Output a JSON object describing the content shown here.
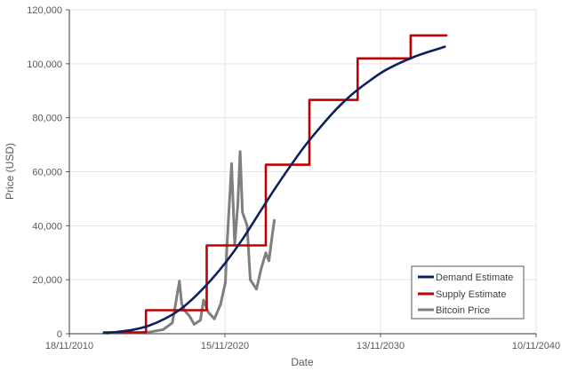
{
  "chart_data": {
    "type": "line",
    "title": "",
    "xlabel": "Date",
    "ylabel": "Price (USD)",
    "x_tick_labels": [
      "18/11/2010",
      "15/11/2020",
      "13/11/2030",
      "10/11/2040"
    ],
    "y_tick_labels": [
      "0",
      "20,000",
      "40,000",
      "60,000",
      "80,000",
      "100,000",
      "120,000"
    ],
    "xlim": [
      "18/11/2010",
      "10/11/2040"
    ],
    "ylim": [
      0,
      120000
    ],
    "grid": true,
    "legend_position": "lower-right-inside",
    "series": [
      {
        "name": "Demand Estimate",
        "color": "#0d1f5c",
        "style": "smooth",
        "points": [
          {
            "year": 2013.1,
            "value": 300
          },
          {
            "year": 2014.0,
            "value": 700
          },
          {
            "year": 2015.0,
            "value": 1500
          },
          {
            "year": 2016.0,
            "value": 3000
          },
          {
            "year": 2017.0,
            "value": 5500
          },
          {
            "year": 2018.0,
            "value": 9000
          },
          {
            "year": 2019.0,
            "value": 14000
          },
          {
            "year": 2020.0,
            "value": 20000
          },
          {
            "year": 2021.0,
            "value": 27000
          },
          {
            "year": 2022.0,
            "value": 35000
          },
          {
            "year": 2023.0,
            "value": 44000
          },
          {
            "year": 2024.0,
            "value": 53000
          },
          {
            "year": 2025.0,
            "value": 61500
          },
          {
            "year": 2026.0,
            "value": 69500
          },
          {
            "year": 2027.0,
            "value": 76500
          },
          {
            "year": 2028.0,
            "value": 83000
          },
          {
            "year": 2029.0,
            "value": 88500
          },
          {
            "year": 2030.0,
            "value": 93000
          },
          {
            "year": 2031.0,
            "value": 97000
          },
          {
            "year": 2032.0,
            "value": 100000
          },
          {
            "year": 2033.0,
            "value": 102500
          },
          {
            "year": 2034.0,
            "value": 104500
          },
          {
            "year": 2035.0,
            "value": 106300
          }
        ]
      },
      {
        "name": "Supply Estimate",
        "color": "#c00000",
        "style": "step",
        "points": [
          {
            "year": 2013.1,
            "value": 500
          },
          {
            "year": 2015.8,
            "value": 500
          },
          {
            "year": 2015.8,
            "value": 8700
          },
          {
            "year": 2019.7,
            "value": 8700
          },
          {
            "year": 2019.7,
            "value": 32700
          },
          {
            "year": 2023.5,
            "value": 32700
          },
          {
            "year": 2023.5,
            "value": 62600
          },
          {
            "year": 2026.3,
            "value": 62600
          },
          {
            "year": 2026.3,
            "value": 86600
          },
          {
            "year": 2029.4,
            "value": 86600
          },
          {
            "year": 2029.4,
            "value": 102000
          },
          {
            "year": 2032.8,
            "value": 102000
          },
          {
            "year": 2032.8,
            "value": 110500
          },
          {
            "year": 2035.1,
            "value": 110500
          }
        ]
      },
      {
        "name": "Bitcoin Price",
        "color": "#7f7f7f",
        "style": "raw",
        "points": [
          {
            "year": 2013.3,
            "value": 100
          },
          {
            "year": 2014.0,
            "value": 600
          },
          {
            "year": 2015.0,
            "value": 300
          },
          {
            "year": 2016.0,
            "value": 600
          },
          {
            "year": 2016.9,
            "value": 1500
          },
          {
            "year": 2017.5,
            "value": 4000
          },
          {
            "year": 2017.95,
            "value": 19500
          },
          {
            "year": 2018.1,
            "value": 11000
          },
          {
            "year": 2018.3,
            "value": 8500
          },
          {
            "year": 2018.6,
            "value": 6500
          },
          {
            "year": 2018.9,
            "value": 3500
          },
          {
            "year": 2019.3,
            "value": 5000
          },
          {
            "year": 2019.5,
            "value": 12500
          },
          {
            "year": 2019.8,
            "value": 8000
          },
          {
            "year": 2020.2,
            "value": 5500
          },
          {
            "year": 2020.6,
            "value": 11000
          },
          {
            "year": 2020.9,
            "value": 19000
          },
          {
            "year": 2021.0,
            "value": 32000
          },
          {
            "year": 2021.3,
            "value": 63000
          },
          {
            "year": 2021.5,
            "value": 33000
          },
          {
            "year": 2021.7,
            "value": 48000
          },
          {
            "year": 2021.85,
            "value": 67500
          },
          {
            "year": 2022.0,
            "value": 45000
          },
          {
            "year": 2022.3,
            "value": 40000
          },
          {
            "year": 2022.5,
            "value": 20000
          },
          {
            "year": 2022.9,
            "value": 16500
          },
          {
            "year": 2023.2,
            "value": 24000
          },
          {
            "year": 2023.5,
            "value": 30000
          },
          {
            "year": 2023.7,
            "value": 27000
          },
          {
            "year": 2023.9,
            "value": 36000
          },
          {
            "year": 2024.05,
            "value": 42000
          }
        ]
      }
    ]
  }
}
